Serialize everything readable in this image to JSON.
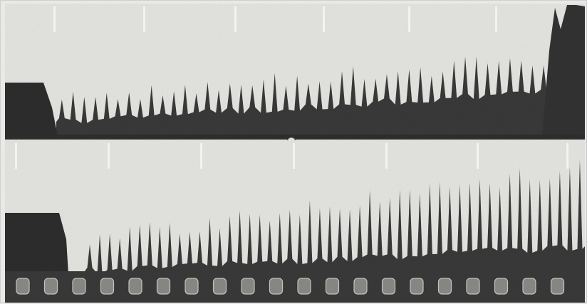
{
  "image": {
    "kind": "photographic plate",
    "strips": [
      {
        "id": "upper",
        "has_left_block": true,
        "has_sprocket_holes": false,
        "peak_count": 44
      },
      {
        "id": "lower",
        "has_left_block": true,
        "has_sprocket_holes": true,
        "peak_count": 50,
        "sprocket_hole_count": 20
      }
    ],
    "colors": {
      "paper": "#e6e6e3",
      "ink": "#3a3a3a",
      "ink_dark": "#2b2b2b",
      "divider": "#2f2f2f",
      "hole": "#8a8a87",
      "tick": "#fafaf8"
    }
  }
}
